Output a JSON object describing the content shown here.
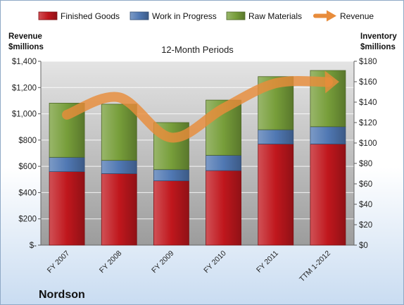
{
  "company": "Nordson",
  "chart_data": {
    "type": "bar",
    "stacked": true,
    "title": "12-Month Periods",
    "left_axis_label": [
      "Revenue",
      "$millions"
    ],
    "right_axis_label": [
      "Inventory",
      "$millions"
    ],
    "categories": [
      "FY 2007",
      "FY 2008",
      "FY 2009",
      "FY 2010",
      "FY 2011",
      "TTM 1-2012"
    ],
    "series": [
      {
        "name": "Finished Goods",
        "axis": "right",
        "color": "#c0171d",
        "values": [
          72,
          70,
          63,
          73,
          99,
          99
        ]
      },
      {
        "name": "Work in Progress",
        "axis": "right",
        "color": "#5078b3",
        "values": [
          14,
          13,
          11,
          15,
          14,
          17
        ]
      },
      {
        "name": "Raw Materials",
        "axis": "right",
        "color": "#779e3a",
        "values": [
          53,
          55,
          46,
          54,
          52,
          55
        ]
      }
    ],
    "line": {
      "name": "Revenue",
      "axis": "left",
      "color": "#e88c3b",
      "values": [
        993,
        1125,
        819,
        1042,
        1233,
        1242
      ]
    },
    "left_ylim": [
      0,
      1400
    ],
    "left_ticks": [
      "$-",
      "$200",
      "$400",
      "$600",
      "$800",
      "$1,000",
      "$1,200",
      "$1,400"
    ],
    "right_ylim": [
      0,
      180
    ],
    "right_ticks": [
      "$0",
      "$20",
      "$40",
      "$60",
      "$80",
      "$100",
      "$120",
      "$140",
      "$160",
      "$180"
    ],
    "legend": "top",
    "grid": true
  }
}
